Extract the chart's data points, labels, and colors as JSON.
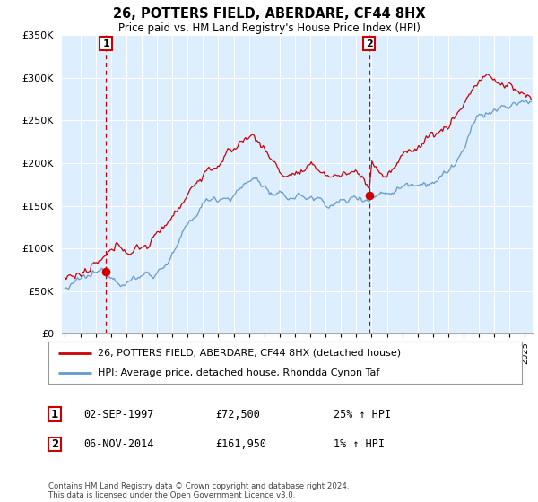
{
  "title": "26, POTTERS FIELD, ABERDARE, CF44 8HX",
  "subtitle": "Price paid vs. HM Land Registry's House Price Index (HPI)",
  "legend_line1": "26, POTTERS FIELD, ABERDARE, CF44 8HX (detached house)",
  "legend_line2": "HPI: Average price, detached house, Rhondda Cynon Taf",
  "sale1_date": "02-SEP-1997",
  "sale1_price": 72500,
  "sale1_label": "25% ↑ HPI",
  "sale2_date": "06-NOV-2014",
  "sale2_price": 161950,
  "sale2_label": "1% ↑ HPI",
  "sale1_x": 1997.67,
  "sale2_x": 2014.84,
  "ylim": [
    0,
    350000
  ],
  "xlim": [
    1994.8,
    2025.5
  ],
  "red_color": "#cc0000",
  "blue_color": "#6699cc",
  "chart_bg": "#ddeeff",
  "background_color": "#ffffff",
  "grid_color": "#ffffff",
  "footer": "Contains HM Land Registry data © Crown copyright and database right 2024.\nThis data is licensed under the Open Government Licence v3.0."
}
